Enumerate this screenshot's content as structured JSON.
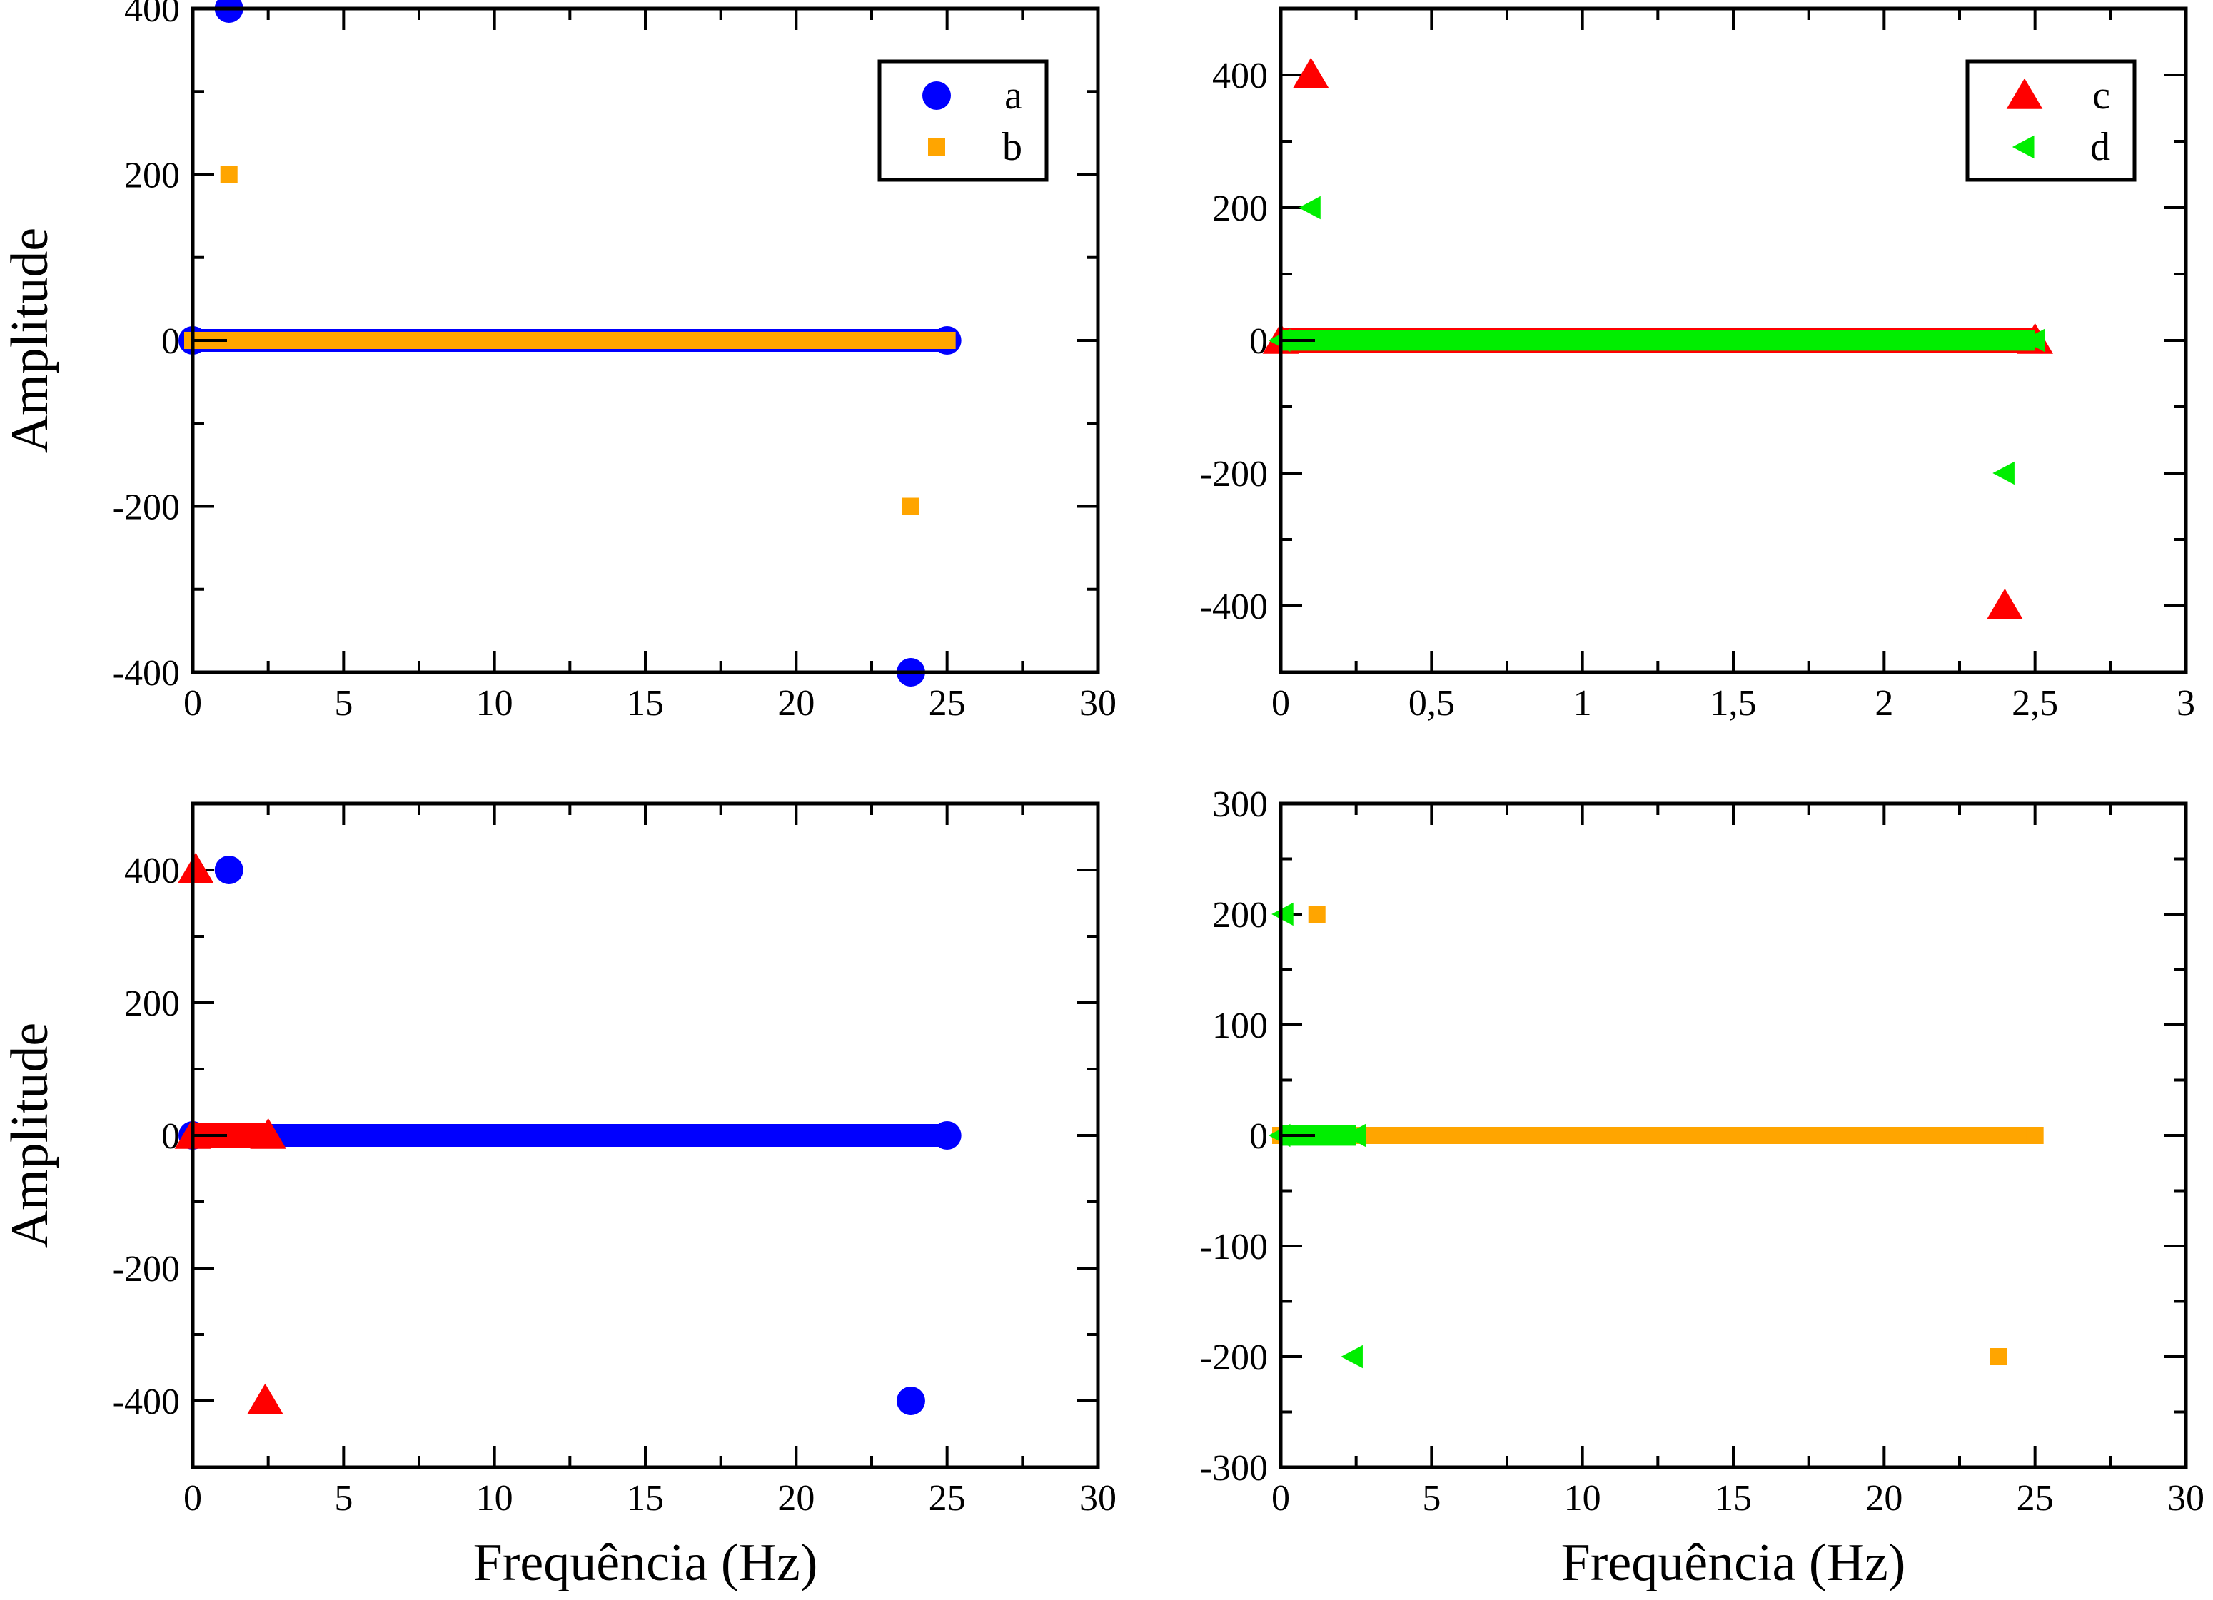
{
  "colors": {
    "a": "#0000ff",
    "b": "#ffa500",
    "c": "#ff0000",
    "d": "#00ee00",
    "axis": "#000000"
  },
  "chart_data": [
    {
      "type": "scatter",
      "panel": "top-left",
      "xlabel": "",
      "ylabel": "Amplitude",
      "xlim": [
        0,
        30
      ],
      "ylim": [
        -400,
        400
      ],
      "xticks": [
        "0",
        "5",
        "10",
        "15",
        "20",
        "25",
        "30"
      ],
      "yticks": [
        "-400",
        "-200",
        "0",
        "200",
        "400"
      ],
      "ytick_values": [
        -400,
        -200,
        0,
        200,
        400
      ],
      "legend": {
        "placement": "top-right",
        "entries": [
          "a",
          "b"
        ]
      },
      "series": [
        {
          "name": "a",
          "marker": "circle",
          "color": "#0000ff",
          "baseline": {
            "y": 0,
            "x_range": [
              0,
              25
            ]
          },
          "points": [
            [
              1.2,
              400
            ],
            [
              23.8,
              -400
            ]
          ]
        },
        {
          "name": "b",
          "marker": "square",
          "color": "#ffa500",
          "baseline": {
            "y": 0,
            "x_range": [
              0,
              25
            ]
          },
          "points": [
            [
              1.2,
              200
            ],
            [
              23.8,
              -200
            ]
          ]
        }
      ]
    },
    {
      "type": "scatter",
      "panel": "top-right",
      "xlabel": "",
      "ylabel": "",
      "xlim": [
        0,
        3
      ],
      "ylim": [
        -500,
        500
      ],
      "xticks": [
        "0",
        "0,5",
        "1",
        "1,5",
        "2",
        "2,5",
        "3"
      ],
      "yticks": [
        "-400",
        "-200",
        "0",
        "200",
        "400"
      ],
      "ytick_values": [
        -400,
        -200,
        0,
        200,
        400
      ],
      "legend": {
        "placement": "top-right",
        "entries": [
          "c",
          "d"
        ]
      },
      "series": [
        {
          "name": "c",
          "marker": "triangle-up",
          "color": "#ff0000",
          "baseline": {
            "y": 0,
            "x_range": [
              0,
              2.5
            ]
          },
          "points": [
            [
              0.1,
              400
            ],
            [
              2.4,
              -400
            ]
          ]
        },
        {
          "name": "d",
          "marker": "triangle-left",
          "color": "#00ee00",
          "baseline": {
            "y": 0,
            "x_range": [
              0,
              2.5
            ]
          },
          "points": [
            [
              0.1,
              200
            ],
            [
              2.4,
              -200
            ]
          ]
        }
      ]
    },
    {
      "type": "scatter",
      "panel": "bottom-left",
      "xlabel": "Frequência (Hz)",
      "ylabel": "Amplitude",
      "xlim": [
        0,
        30
      ],
      "ylim": [
        -500,
        500
      ],
      "xticks": [
        "0",
        "5",
        "10",
        "15",
        "20",
        "25",
        "30"
      ],
      "yticks": [
        "-400",
        "-200",
        "0",
        "200",
        "400"
      ],
      "ytick_values": [
        -400,
        -200,
        0,
        200,
        400
      ],
      "series": [
        {
          "name": "a",
          "marker": "circle",
          "color": "#0000ff",
          "baseline": {
            "y": 0,
            "x_range": [
              0,
              25
            ]
          },
          "points": [
            [
              1.2,
              400
            ],
            [
              23.8,
              -400
            ]
          ]
        },
        {
          "name": "c",
          "marker": "triangle-up",
          "color": "#ff0000",
          "baseline": {
            "y": 0,
            "x_range": [
              0,
              2.5
            ]
          },
          "points": [
            [
              0.1,
              400
            ],
            [
              2.4,
              -400
            ]
          ]
        }
      ]
    },
    {
      "type": "scatter",
      "panel": "bottom-right",
      "xlabel": "Frequência (Hz)",
      "ylabel": "",
      "xlim": [
        0,
        30
      ],
      "ylim": [
        -300,
        300
      ],
      "xticks": [
        "0",
        "5",
        "10",
        "15",
        "20",
        "25",
        "30"
      ],
      "yticks": [
        "-300",
        "-200",
        "-100",
        "0",
        "100",
        "200",
        "300"
      ],
      "ytick_values": [
        -300,
        -200,
        -100,
        0,
        100,
        200,
        300
      ],
      "series": [
        {
          "name": "b",
          "marker": "square",
          "color": "#ffa500",
          "baseline": {
            "y": 0,
            "x_range": [
              0,
              25
            ]
          },
          "points": [
            [
              1.2,
              200
            ],
            [
              23.8,
              -200
            ]
          ]
        },
        {
          "name": "d",
          "marker": "triangle-left",
          "color": "#00ee00",
          "baseline": {
            "y": 0,
            "x_range": [
              0,
              2.5
            ]
          },
          "points": [
            [
              0.1,
              200
            ],
            [
              2.4,
              -200
            ]
          ]
        }
      ]
    }
  ]
}
